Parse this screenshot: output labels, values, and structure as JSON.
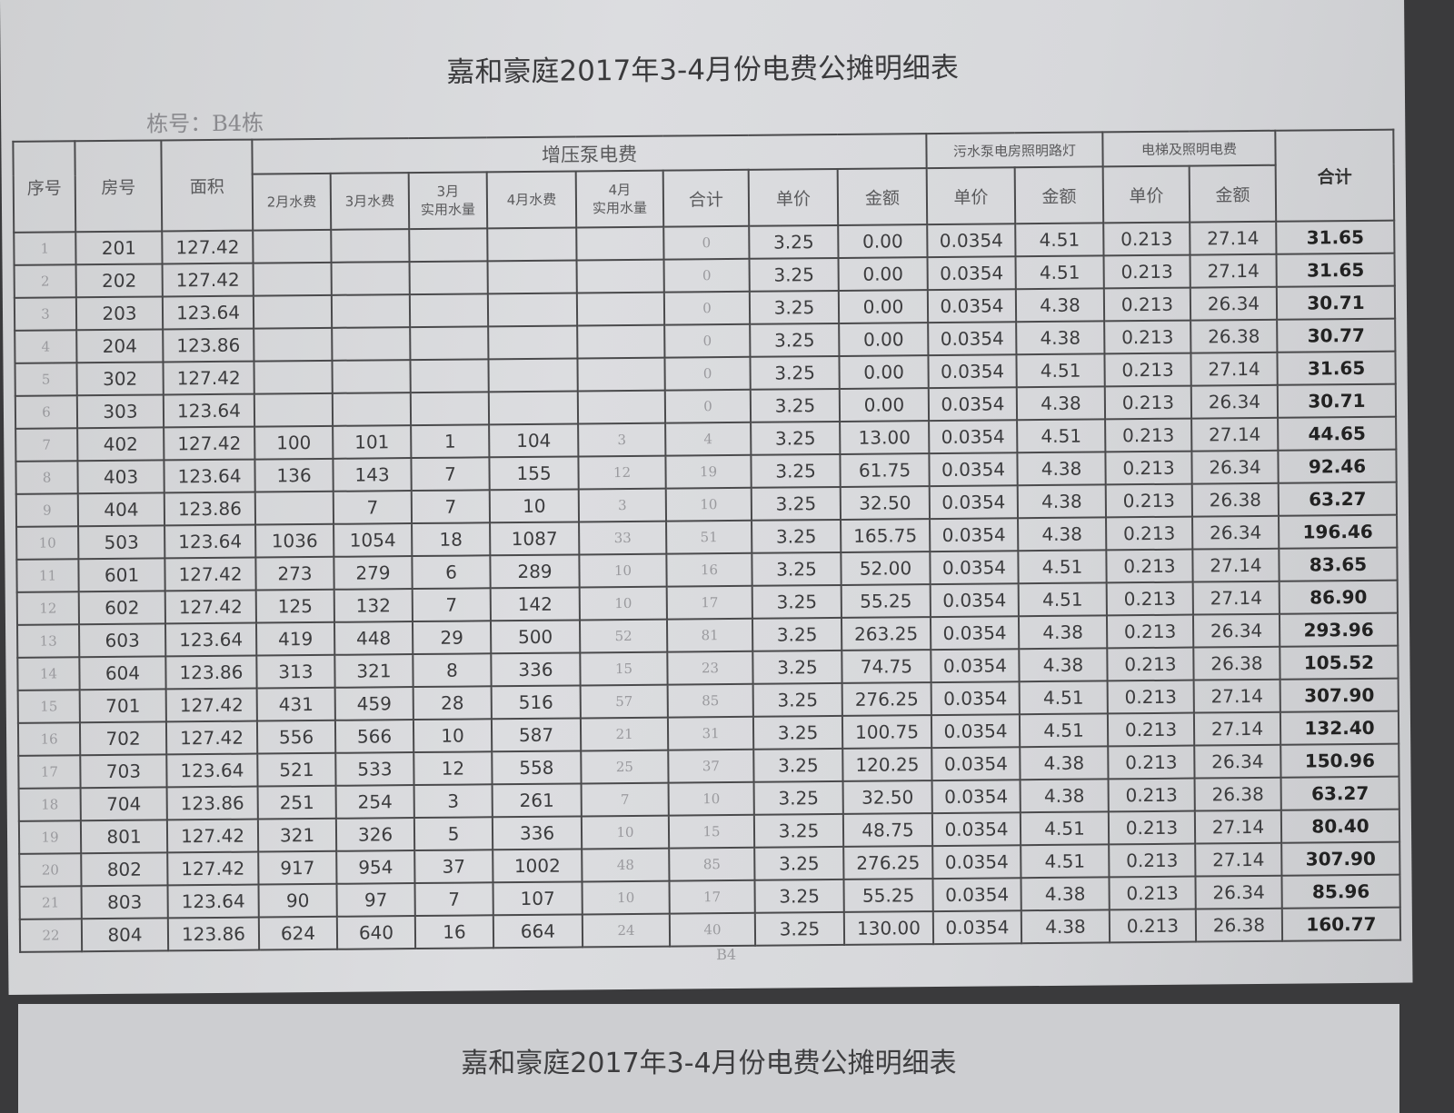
{
  "title": "嘉和豪庭2017年3-4月份电费公摊明细表",
  "building_label": "栋号：B4栋",
  "headers": {
    "seq": "序号",
    "room": "房号",
    "area": "面积",
    "pump_group": "增压泵电费",
    "feb_water": "2月水费",
    "mar_water": "3月水费",
    "mar_usage": "3月\n实用水量",
    "apr_water": "4月水费",
    "apr_usage": "4月\n实用水量",
    "pump_total": "合计",
    "pump_price": "单价",
    "pump_amount": "金额",
    "sewage_group": "污水泵电房照明路灯",
    "sewage_price": "单价",
    "sewage_amount": "金额",
    "elevator_group": "电梯及照明电费",
    "elevator_price": "单价",
    "elevator_amount": "金额",
    "grand_total": "合计"
  },
  "rows": [
    [
      "1",
      "201",
      "127.42",
      "",
      "",
      "",
      "",
      "",
      "0",
      "3.25",
      "0.00",
      "0.0354",
      "4.51",
      "0.213",
      "27.14",
      "31.65"
    ],
    [
      "2",
      "202",
      "127.42",
      "",
      "",
      "",
      "",
      "",
      "0",
      "3.25",
      "0.00",
      "0.0354",
      "4.51",
      "0.213",
      "27.14",
      "31.65"
    ],
    [
      "3",
      "203",
      "123.64",
      "",
      "",
      "",
      "",
      "",
      "0",
      "3.25",
      "0.00",
      "0.0354",
      "4.38",
      "0.213",
      "26.34",
      "30.71"
    ],
    [
      "4",
      "204",
      "123.86",
      "",
      "",
      "",
      "",
      "",
      "0",
      "3.25",
      "0.00",
      "0.0354",
      "4.38",
      "0.213",
      "26.38",
      "30.77"
    ],
    [
      "5",
      "302",
      "127.42",
      "",
      "",
      "",
      "",
      "",
      "0",
      "3.25",
      "0.00",
      "0.0354",
      "4.51",
      "0.213",
      "27.14",
      "31.65"
    ],
    [
      "6",
      "303",
      "123.64",
      "",
      "",
      "",
      "",
      "",
      "0",
      "3.25",
      "0.00",
      "0.0354",
      "4.38",
      "0.213",
      "26.34",
      "30.71"
    ],
    [
      "7",
      "402",
      "127.42",
      "100",
      "101",
      "1",
      "104",
      "3",
      "4",
      "3.25",
      "13.00",
      "0.0354",
      "4.51",
      "0.213",
      "27.14",
      "44.65"
    ],
    [
      "8",
      "403",
      "123.64",
      "136",
      "143",
      "7",
      "155",
      "12",
      "19",
      "3.25",
      "61.75",
      "0.0354",
      "4.38",
      "0.213",
      "26.34",
      "92.46"
    ],
    [
      "9",
      "404",
      "123.86",
      "",
      "7",
      "7",
      "10",
      "3",
      "10",
      "3.25",
      "32.50",
      "0.0354",
      "4.38",
      "0.213",
      "26.38",
      "63.27"
    ],
    [
      "10",
      "503",
      "123.64",
      "1036",
      "1054",
      "18",
      "1087",
      "33",
      "51",
      "3.25",
      "165.75",
      "0.0354",
      "4.38",
      "0.213",
      "26.34",
      "196.46"
    ],
    [
      "11",
      "601",
      "127.42",
      "273",
      "279",
      "6",
      "289",
      "10",
      "16",
      "3.25",
      "52.00",
      "0.0354",
      "4.51",
      "0.213",
      "27.14",
      "83.65"
    ],
    [
      "12",
      "602",
      "127.42",
      "125",
      "132",
      "7",
      "142",
      "10",
      "17",
      "3.25",
      "55.25",
      "0.0354",
      "4.51",
      "0.213",
      "27.14",
      "86.90"
    ],
    [
      "13",
      "603",
      "123.64",
      "419",
      "448",
      "29",
      "500",
      "52",
      "81",
      "3.25",
      "263.25",
      "0.0354",
      "4.38",
      "0.213",
      "26.34",
      "293.96"
    ],
    [
      "14",
      "604",
      "123.86",
      "313",
      "321",
      "8",
      "336",
      "15",
      "23",
      "3.25",
      "74.75",
      "0.0354",
      "4.38",
      "0.213",
      "26.38",
      "105.52"
    ],
    [
      "15",
      "701",
      "127.42",
      "431",
      "459",
      "28",
      "516",
      "57",
      "85",
      "3.25",
      "276.25",
      "0.0354",
      "4.51",
      "0.213",
      "27.14",
      "307.90"
    ],
    [
      "16",
      "702",
      "127.42",
      "556",
      "566",
      "10",
      "587",
      "21",
      "31",
      "3.25",
      "100.75",
      "0.0354",
      "4.51",
      "0.213",
      "27.14",
      "132.40"
    ],
    [
      "17",
      "703",
      "123.64",
      "521",
      "533",
      "12",
      "558",
      "25",
      "37",
      "3.25",
      "120.25",
      "0.0354",
      "4.38",
      "0.213",
      "26.34",
      "150.96"
    ],
    [
      "18",
      "704",
      "123.86",
      "251",
      "254",
      "3",
      "261",
      "7",
      "10",
      "3.25",
      "32.50",
      "0.0354",
      "4.38",
      "0.213",
      "26.38",
      "63.27"
    ],
    [
      "19",
      "801",
      "127.42",
      "321",
      "326",
      "5",
      "336",
      "10",
      "15",
      "3.25",
      "48.75",
      "0.0354",
      "4.51",
      "0.213",
      "27.14",
      "80.40"
    ],
    [
      "20",
      "802",
      "127.42",
      "917",
      "954",
      "37",
      "1002",
      "48",
      "85",
      "3.25",
      "276.25",
      "0.0354",
      "4.51",
      "0.213",
      "27.14",
      "307.90"
    ],
    [
      "21",
      "803",
      "123.64",
      "90",
      "97",
      "7",
      "107",
      "10",
      "17",
      "3.25",
      "55.25",
      "0.0354",
      "4.38",
      "0.213",
      "26.34",
      "85.96"
    ],
    [
      "22",
      "804",
      "123.86",
      "624",
      "640",
      "16",
      "664",
      "24",
      "40",
      "3.25",
      "130.00",
      "0.0354",
      "4.38",
      "0.213",
      "26.38",
      "160.77"
    ]
  ],
  "footer": "B4",
  "next_sheet_title": "嘉和豪庭2017年3-4月份电费公摊明细表"
}
